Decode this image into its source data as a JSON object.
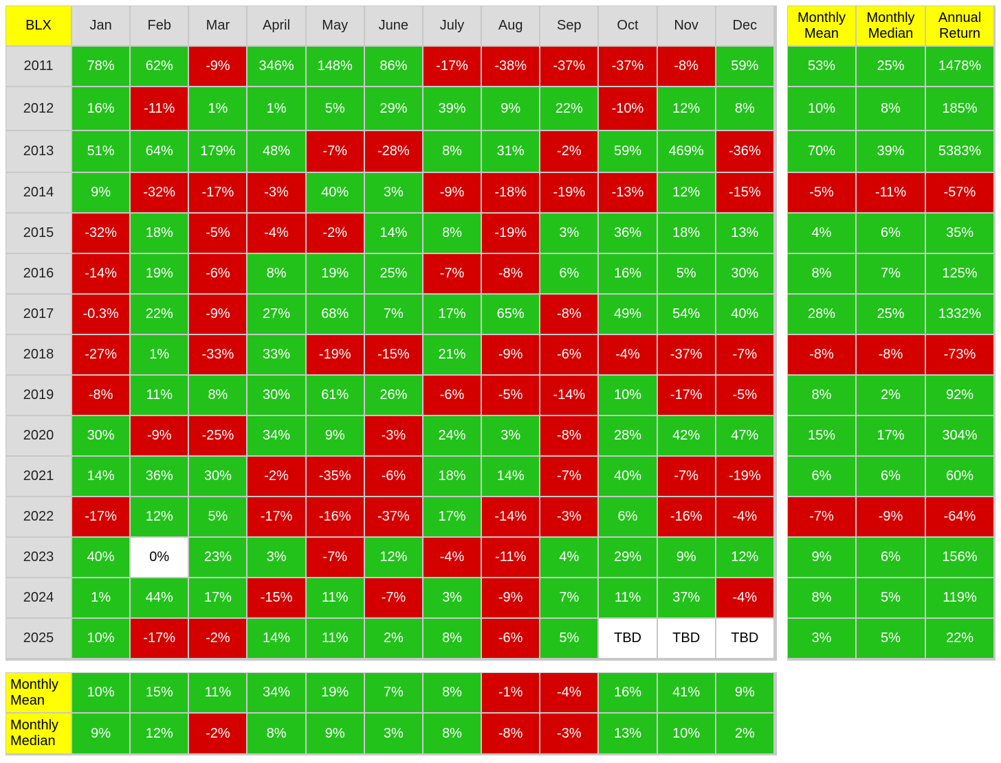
{
  "chart_data": {
    "type": "table",
    "corner_label": "BLX",
    "months": [
      "Jan",
      "Feb",
      "Mar",
      "April",
      "May",
      "June",
      "July",
      "Aug",
      "Sep",
      "Oct",
      "Nov",
      "Dec"
    ],
    "summary_headers": [
      "Monthly\nMean",
      "Monthly\nMedian",
      "Annual\nReturn"
    ],
    "rows": [
      {
        "year": "2011",
        "values": [
          "78%",
          "62%",
          "-9%",
          "346%",
          "148%",
          "86%",
          "-17%",
          "-38%",
          "-37%",
          "-37%",
          "-8%",
          "59%"
        ],
        "summary": [
          "53%",
          "25%",
          "1478%"
        ]
      },
      {
        "year": "2012",
        "values": [
          "16%",
          "-11%",
          "1%",
          "1%",
          "5%",
          "29%",
          "39%",
          "9%",
          "22%",
          "-10%",
          "12%",
          "8%"
        ],
        "summary": [
          "10%",
          "8%",
          "185%"
        ]
      },
      {
        "year": "2013",
        "values": [
          "51%",
          "64%",
          "179%",
          "48%",
          "-7%",
          "-28%",
          "8%",
          "31%",
          "-2%",
          "59%",
          "469%",
          "-36%"
        ],
        "summary": [
          "70%",
          "39%",
          "5383%"
        ]
      },
      {
        "year": "2014",
        "values": [
          "9%",
          "-32%",
          "-17%",
          "-3%",
          "40%",
          "3%",
          "-9%",
          "-18%",
          "-19%",
          "-13%",
          "12%",
          "-15%"
        ],
        "summary": [
          "-5%",
          "-11%",
          "-57%"
        ]
      },
      {
        "year": "2015",
        "values": [
          "-32%",
          "18%",
          "-5%",
          "-4%",
          "-2%",
          "14%",
          "8%",
          "-19%",
          "3%",
          "36%",
          "18%",
          "13%"
        ],
        "summary": [
          "4%",
          "6%",
          "35%"
        ]
      },
      {
        "year": "2016",
        "values": [
          "-14%",
          "19%",
          "-6%",
          "8%",
          "19%",
          "25%",
          "-7%",
          "-8%",
          "6%",
          "16%",
          "5%",
          "30%"
        ],
        "summary": [
          "8%",
          "7%",
          "125%"
        ]
      },
      {
        "year": "2017",
        "values": [
          "-0.3%",
          "22%",
          "-9%",
          "27%",
          "68%",
          "7%",
          "17%",
          "65%",
          "-8%",
          "49%",
          "54%",
          "40%"
        ],
        "summary": [
          "28%",
          "25%",
          "1332%"
        ]
      },
      {
        "year": "2018",
        "values": [
          "-27%",
          "1%",
          "-33%",
          "33%",
          "-19%",
          "-15%",
          "21%",
          "-9%",
          "-6%",
          "-4%",
          "-37%",
          "-7%"
        ],
        "summary": [
          "-8%",
          "-8%",
          "-73%"
        ]
      },
      {
        "year": "2019",
        "values": [
          "-8%",
          "11%",
          "8%",
          "30%",
          "61%",
          "26%",
          "-6%",
          "-5%",
          "-14%",
          "10%",
          "-17%",
          "-5%"
        ],
        "summary": [
          "8%",
          "2%",
          "92%"
        ]
      },
      {
        "year": "2020",
        "values": [
          "30%",
          "-9%",
          "-25%",
          "34%",
          "9%",
          "-3%",
          "24%",
          "3%",
          "-8%",
          "28%",
          "42%",
          "47%"
        ],
        "summary": [
          "15%",
          "17%",
          "304%"
        ]
      },
      {
        "year": "2021",
        "values": [
          "14%",
          "36%",
          "30%",
          "-2%",
          "-35%",
          "-6%",
          "18%",
          "14%",
          "-7%",
          "40%",
          "-7%",
          "-19%"
        ],
        "summary": [
          "6%",
          "6%",
          "60%"
        ]
      },
      {
        "year": "2022",
        "values": [
          "-17%",
          "12%",
          "5%",
          "-17%",
          "-16%",
          "-37%",
          "17%",
          "-14%",
          "-3%",
          "6%",
          "-16%",
          "-4%"
        ],
        "summary": [
          "-7%",
          "-9%",
          "-64%"
        ]
      },
      {
        "year": "2023",
        "values": [
          "40%",
          "0%",
          "23%",
          "3%",
          "-7%",
          "12%",
          "-4%",
          "-11%",
          "4%",
          "29%",
          "9%",
          "12%"
        ],
        "summary": [
          "9%",
          "6%",
          "156%"
        ]
      },
      {
        "year": "2024",
        "values": [
          "1%",
          "44%",
          "17%",
          "-15%",
          "11%",
          "-7%",
          "3%",
          "-9%",
          "7%",
          "11%",
          "37%",
          "-4%"
        ],
        "summary": [
          "8%",
          "5%",
          "119%"
        ]
      },
      {
        "year": "2025",
        "values": [
          "10%",
          "-17%",
          "-2%",
          "14%",
          "11%",
          "2%",
          "8%",
          "-6%",
          "5%",
          "TBD",
          "TBD",
          "TBD"
        ],
        "summary": [
          "3%",
          "5%",
          "22%"
        ]
      }
    ],
    "bottom_rows": [
      {
        "label": "Monthly\nMean",
        "values": [
          "10%",
          "15%",
          "11%",
          "34%",
          "19%",
          "7%",
          "8%",
          "-1%",
          "-4%",
          "16%",
          "41%",
          "9%"
        ]
      },
      {
        "label": "Monthly\nMedian",
        "values": [
          "9%",
          "12%",
          "-2%",
          "8%",
          "9%",
          "3%",
          "8%",
          "-8%",
          "-3%",
          "13%",
          "10%",
          "2%"
        ]
      }
    ]
  },
  "colors": {
    "positive": "#22c21b",
    "negative": "#d40000",
    "neutral": "#ffffff",
    "header_highlight": "#ffff00",
    "header_grey": "#dcdcdc",
    "gridline": "#c8c8c8"
  }
}
